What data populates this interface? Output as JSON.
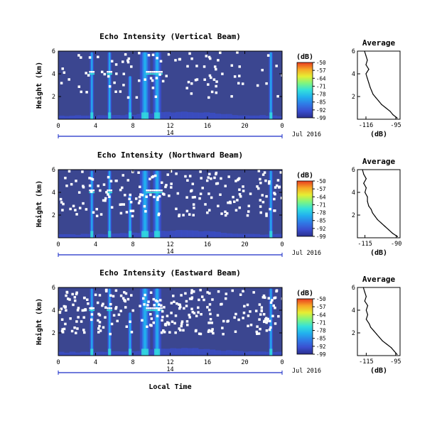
{
  "colors": {
    "background_fill": "#3b4690",
    "colormap": [
      "#2a2f8e",
      "#3a4fd0",
      "#2f7be6",
      "#22b0ee",
      "#33e0dc",
      "#7ff57f",
      "#e6ee33",
      "#f7a826",
      "#e83c1f"
    ],
    "profile_line": "#000000",
    "date_bar": "#1a2cc8"
  },
  "axis_labels": {
    "height": "Height (km)",
    "profile_x": "(dB)",
    "time": "Local Time",
    "colorbar_unit": "(dB)",
    "date": "Jul 2016",
    "day": "14"
  },
  "chart_data": [
    {
      "type": "heatmap",
      "title": "Echo Intensity (Vertical Beam)",
      "xlabel": "",
      "ylabel": "Height (km)",
      "x_ticks": [
        "0",
        "4",
        "8",
        "12",
        "16",
        "20",
        "0"
      ],
      "y_ticks": [
        "6",
        "4",
        "2"
      ],
      "xlim": [
        0,
        24
      ],
      "ylim": [
        0,
        6
      ],
      "colorbar_ticks": [
        "-50",
        "-57",
        "-64",
        "-71",
        "-78",
        "-85",
        "-92",
        "-99"
      ],
      "colorbar_range": [
        -99,
        -50
      ],
      "intense_columns_hours": [
        3.6,
        5.5,
        7.7,
        9.3,
        10.6,
        22.8
      ],
      "missing_fraction": 0.08
    },
    {
      "type": "line",
      "title": "Average",
      "xlabel": "(dB)",
      "ylabel": "",
      "x_ticks": [
        "-116",
        "-95"
      ],
      "y_ticks": [
        "6",
        "4",
        "2"
      ],
      "xlim": [
        -122,
        -92
      ],
      "ylim": [
        0,
        6
      ],
      "x": [
        -117,
        -116,
        -115,
        -116,
        -114,
        -116,
        -115,
        -114,
        -113,
        -112,
        -111,
        -109,
        -107,
        -105,
        -102,
        -99,
        -97,
        -94
      ],
      "y": [
        6.0,
        5.6,
        5.2,
        4.8,
        4.4,
        4.0,
        3.6,
        3.2,
        2.8,
        2.5,
        2.2,
        1.9,
        1.6,
        1.3,
        1.0,
        0.7,
        0.4,
        0.1
      ]
    },
    {
      "type": "heatmap",
      "title": "Echo Intensity (Northward Beam)",
      "xlabel": "",
      "ylabel": "Height (km)",
      "x_ticks": [
        "0",
        "4",
        "8",
        "12",
        "16",
        "20",
        "0"
      ],
      "y_ticks": [
        "6",
        "4",
        "2"
      ],
      "xlim": [
        0,
        24
      ],
      "ylim": [
        0,
        6
      ],
      "colorbar_ticks": [
        "-50",
        "-57",
        "-64",
        "-71",
        "-78",
        "-85",
        "-92",
        "-99"
      ],
      "colorbar_range": [
        -99,
        -50
      ],
      "intense_columns_hours": [
        3.6,
        5.5,
        7.7,
        9.3,
        10.6,
        22.8
      ],
      "missing_fraction": 0.16
    },
    {
      "type": "line",
      "title": "Average",
      "xlabel": "(dB)",
      "ylabel": "",
      "x_ticks": [
        "-115",
        "-90"
      ],
      "y_ticks": [
        "6",
        "4",
        "2"
      ],
      "xlim": [
        -121,
        -87
      ],
      "ylim": [
        0,
        6
      ],
      "x": [
        -117,
        -116,
        -114,
        -116,
        -114,
        -115,
        -113,
        -113,
        -112,
        -110,
        -109,
        -107,
        -105,
        -102,
        -99,
        -96,
        -93,
        -89
      ],
      "y": [
        6.0,
        5.6,
        5.2,
        4.8,
        4.4,
        4.0,
        3.6,
        3.2,
        2.8,
        2.5,
        2.2,
        1.9,
        1.6,
        1.3,
        1.0,
        0.7,
        0.4,
        0.1
      ]
    },
    {
      "type": "heatmap",
      "title": "Echo Intensity (Eastward Beam)",
      "xlabel": "Local Time",
      "ylabel": "Height (km)",
      "x_ticks": [
        "0",
        "4",
        "8",
        "12",
        "16",
        "20",
        "0"
      ],
      "y_ticks": [
        "6",
        "4",
        "2"
      ],
      "xlim": [
        0,
        24
      ],
      "ylim": [
        0,
        6
      ],
      "colorbar_ticks": [
        "-50",
        "-57",
        "-64",
        "-71",
        "-78",
        "-85",
        "-92",
        "-99"
      ],
      "colorbar_range": [
        -99,
        -50
      ],
      "intense_columns_hours": [
        3.6,
        5.5,
        7.7,
        9.3,
        10.6,
        22.8
      ],
      "missing_fraction": 0.22
    },
    {
      "type": "line",
      "title": "Average",
      "xlabel": "(dB)",
      "ylabel": "",
      "x_ticks": [
        "-115",
        "-95"
      ],
      "y_ticks": [
        "6",
        "4",
        "2"
      ],
      "xlim": [
        -121,
        -92
      ],
      "ylim": [
        0,
        6
      ],
      "x": [
        -117,
        -116,
        -115,
        -116,
        -114,
        -115,
        -114,
        -115,
        -113,
        -112,
        -110,
        -108,
        -106,
        -104,
        -101,
        -98,
        -96,
        -94
      ],
      "y": [
        6.0,
        5.6,
        5.2,
        4.8,
        4.4,
        4.0,
        3.6,
        3.2,
        2.8,
        2.5,
        2.2,
        1.9,
        1.6,
        1.3,
        1.0,
        0.7,
        0.4,
        0.1
      ]
    }
  ]
}
